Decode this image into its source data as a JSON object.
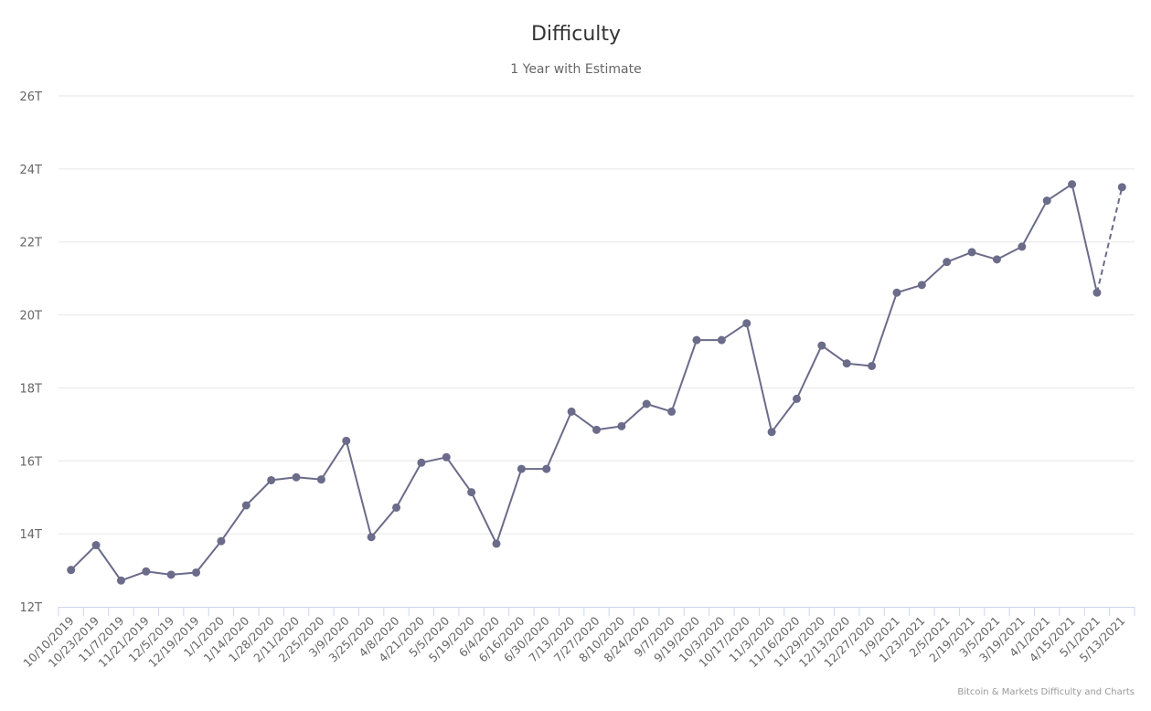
{
  "chart_data": {
    "type": "line",
    "title": "Difficulty",
    "subtitle": "1 Year with Estimate",
    "credits": "Bitcoin & Markets Difficulty and Charts",
    "y_unit_suffix": "T",
    "ylim": [
      12,
      26
    ],
    "yticks": [
      12,
      14,
      16,
      18,
      20,
      22,
      24,
      26
    ],
    "grid": true,
    "colors": {
      "line": "#6b6b8a",
      "grid": "#e6e6e6",
      "axis": "#ccd6eb",
      "text": "#666666"
    },
    "categories": [
      "10/10/2019",
      "10/23/2019",
      "11/7/2019",
      "11/21/2019",
      "12/5/2019",
      "12/19/2019",
      "1/1/2020",
      "1/14/2020",
      "1/28/2020",
      "2/11/2020",
      "2/25/2020",
      "3/9/2020",
      "3/25/2020",
      "4/8/2020",
      "4/21/2020",
      "5/5/2020",
      "5/19/2020",
      "6/4/2020",
      "6/16/2020",
      "6/30/2020",
      "7/13/2020",
      "7/27/2020",
      "8/10/2020",
      "8/24/2020",
      "9/7/2020",
      "9/19/2020",
      "10/3/2020",
      "10/17/2020",
      "11/3/2020",
      "11/16/2020",
      "11/29/2020",
      "12/13/2020",
      "12/27/2020",
      "1/9/2021",
      "1/23/2021",
      "2/5/2021",
      "2/19/2021",
      "3/5/2021",
      "3/19/2021",
      "4/1/2021",
      "4/15/2021",
      "5/1/2021",
      "5/13/2021"
    ],
    "series": [
      {
        "values": [
          13.01,
          13.69,
          12.72,
          12.97,
          12.88,
          12.94,
          13.8,
          14.78,
          15.47,
          15.55,
          15.49,
          16.55,
          13.91,
          14.72,
          15.95,
          16.1,
          15.14,
          13.73,
          15.78,
          15.78,
          17.35,
          16.85,
          16.95,
          17.56,
          17.35,
          19.31,
          19.31,
          19.77,
          16.79,
          17.7,
          19.16,
          18.67,
          18.6,
          20.61,
          20.82,
          21.45,
          21.72,
          21.52,
          21.87,
          23.13,
          23.58,
          20.61,
          23.5
        ],
        "estimate_from_index": 41
      }
    ]
  }
}
